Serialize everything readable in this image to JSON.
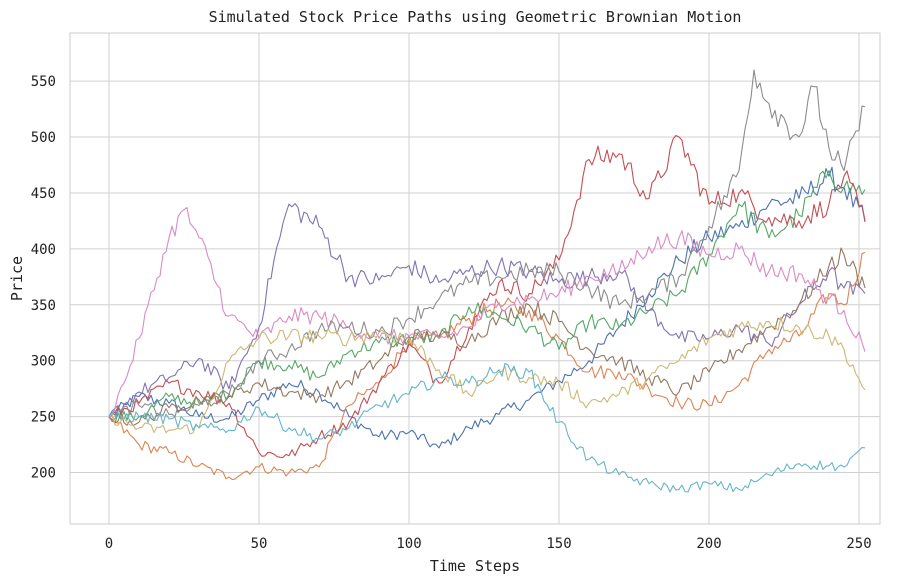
{
  "chart_data": {
    "type": "line",
    "title": "Simulated Stock Price Paths using Geometric Brownian Motion",
    "xlabel": "Time Steps",
    "ylabel": "Price",
    "xlim": [
      -13,
      257
    ],
    "ylim": [
      154,
      593
    ],
    "xticks": [
      0,
      50,
      100,
      150,
      200,
      250
    ],
    "yticks": [
      200,
      250,
      300,
      350,
      400,
      450,
      500,
      550
    ],
    "grid": true,
    "legend": "none",
    "series": [
      {
        "color": "#4c72b0",
        "points": [
          [
            0,
            250
          ],
          [
            10,
            268
          ],
          [
            20,
            262
          ],
          [
            30,
            250
          ],
          [
            40,
            248
          ],
          [
            50,
            265
          ],
          [
            60,
            280
          ],
          [
            70,
            272
          ],
          [
            80,
            250
          ],
          [
            90,
            232
          ],
          [
            100,
            236
          ],
          [
            110,
            222
          ],
          [
            120,
            240
          ],
          [
            130,
            252
          ],
          [
            140,
            265
          ],
          [
            150,
            282
          ],
          [
            160,
            300
          ],
          [
            170,
            330
          ],
          [
            180,
            360
          ],
          [
            190,
            390
          ],
          [
            200,
            410
          ],
          [
            210,
            420
          ],
          [
            220,
            440
          ],
          [
            230,
            445
          ],
          [
            240,
            465
          ],
          [
            245,
            455
          ],
          [
            252,
            424
          ]
        ]
      },
      {
        "color": "#dd8452",
        "points": [
          [
            0,
            250
          ],
          [
            10,
            225
          ],
          [
            20,
            218
          ],
          [
            30,
            206
          ],
          [
            40,
            196
          ],
          [
            50,
            205
          ],
          [
            60,
            200
          ],
          [
            70,
            205
          ],
          [
            80,
            260
          ],
          [
            90,
            280
          ],
          [
            100,
            318
          ],
          [
            110,
            320
          ],
          [
            120,
            338
          ],
          [
            130,
            350
          ],
          [
            140,
            345
          ],
          [
            150,
            320
          ],
          [
            160,
            290
          ],
          [
            170,
            290
          ],
          [
            180,
            275
          ],
          [
            190,
            262
          ],
          [
            200,
            260
          ],
          [
            210,
            278
          ],
          [
            220,
            310
          ],
          [
            230,
            322
          ],
          [
            240,
            360
          ],
          [
            245,
            350
          ],
          [
            252,
            397
          ]
        ]
      },
      {
        "color": "#55a868",
        "points": [
          [
            0,
            250
          ],
          [
            10,
            250
          ],
          [
            20,
            268
          ],
          [
            30,
            262
          ],
          [
            40,
            270
          ],
          [
            50,
            300
          ],
          [
            60,
            296
          ],
          [
            70,
            285
          ],
          [
            80,
            308
          ],
          [
            90,
            316
          ],
          [
            100,
            320
          ],
          [
            110,
            320
          ],
          [
            120,
            348
          ],
          [
            130,
            340
          ],
          [
            140,
            330
          ],
          [
            150,
            310
          ],
          [
            160,
            335
          ],
          [
            170,
            330
          ],
          [
            180,
            345
          ],
          [
            190,
            360
          ],
          [
            200,
            395
          ],
          [
            210,
            440
          ],
          [
            220,
            410
          ],
          [
            230,
            430
          ],
          [
            240,
            470
          ],
          [
            245,
            455
          ],
          [
            252,
            453
          ]
        ]
      },
      {
        "color": "#c44e52",
        "points": [
          [
            0,
            250
          ],
          [
            10,
            262
          ],
          [
            20,
            280
          ],
          [
            30,
            272
          ],
          [
            40,
            262
          ],
          [
            50,
            218
          ],
          [
            60,
            215
          ],
          [
            70,
            232
          ],
          [
            80,
            245
          ],
          [
            90,
            280
          ],
          [
            100,
            315
          ],
          [
            110,
            280
          ],
          [
            120,
            330
          ],
          [
            130,
            370
          ],
          [
            140,
            360
          ],
          [
            150,
            390
          ],
          [
            160,
            480
          ],
          [
            170,
            485
          ],
          [
            180,
            445
          ],
          [
            190,
            500
          ],
          [
            200,
            440
          ],
          [
            210,
            450
          ],
          [
            220,
            428
          ],
          [
            230,
            425
          ],
          [
            240,
            440
          ],
          [
            245,
            465
          ],
          [
            252,
            425
          ]
        ]
      },
      {
        "color": "#8172b3",
        "points": [
          [
            0,
            250
          ],
          [
            10,
            272
          ],
          [
            20,
            285
          ],
          [
            30,
            302
          ],
          [
            40,
            275
          ],
          [
            50,
            330
          ],
          [
            55,
            390
          ],
          [
            60,
            440
          ],
          [
            70,
            420
          ],
          [
            80,
            375
          ],
          [
            90,
            372
          ],
          [
            100,
            385
          ],
          [
            110,
            370
          ],
          [
            120,
            380
          ],
          [
            130,
            385
          ],
          [
            140,
            380
          ],
          [
            150,
            370
          ],
          [
            160,
            375
          ],
          [
            170,
            380
          ],
          [
            180,
            345
          ],
          [
            190,
            320
          ],
          [
            200,
            320
          ],
          [
            210,
            330
          ],
          [
            220,
            315
          ],
          [
            230,
            350
          ],
          [
            240,
            380
          ],
          [
            245,
            365
          ],
          [
            252,
            360
          ]
        ]
      },
      {
        "color": "#937860",
        "points": [
          [
            0,
            250
          ],
          [
            10,
            245
          ],
          [
            20,
            258
          ],
          [
            30,
            265
          ],
          [
            40,
            268
          ],
          [
            50,
            280
          ],
          [
            60,
            272
          ],
          [
            70,
            268
          ],
          [
            80,
            282
          ],
          [
            90,
            300
          ],
          [
            100,
            322
          ],
          [
            110,
            322
          ],
          [
            120,
            318
          ],
          [
            130,
            338
          ],
          [
            140,
            350
          ],
          [
            150,
            335
          ],
          [
            160,
            310
          ],
          [
            170,
            300
          ],
          [
            180,
            285
          ],
          [
            190,
            272
          ],
          [
            200,
            290
          ],
          [
            210,
            310
          ],
          [
            220,
            330
          ],
          [
            230,
            350
          ],
          [
            240,
            385
          ],
          [
            245,
            395
          ],
          [
            252,
            365
          ]
        ]
      },
      {
        "color": "#da8bc3",
        "points": [
          [
            0,
            250
          ],
          [
            5,
            280
          ],
          [
            10,
            320
          ],
          [
            20,
            410
          ],
          [
            25,
            435
          ],
          [
            30,
            410
          ],
          [
            40,
            340
          ],
          [
            50,
            320
          ],
          [
            60,
            340
          ],
          [
            70,
            340
          ],
          [
            80,
            330
          ],
          [
            90,
            320
          ],
          [
            100,
            322
          ],
          [
            110,
            320
          ],
          [
            120,
            330
          ],
          [
            130,
            352
          ],
          [
            140,
            355
          ],
          [
            150,
            360
          ],
          [
            160,
            375
          ],
          [
            170,
            380
          ],
          [
            180,
            402
          ],
          [
            190,
            410
          ],
          [
            200,
            395
          ],
          [
            210,
            400
          ],
          [
            220,
            380
          ],
          [
            230,
            378
          ],
          [
            240,
            355
          ],
          [
            245,
            345
          ],
          [
            252,
            308
          ]
        ]
      },
      {
        "color": "#8c8c8c",
        "points": [
          [
            0,
            250
          ],
          [
            10,
            260
          ],
          [
            20,
            252
          ],
          [
            30,
            260
          ],
          [
            40,
            270
          ],
          [
            50,
            300
          ],
          [
            60,
            310
          ],
          [
            70,
            328
          ],
          [
            80,
            330
          ],
          [
            90,
            326
          ],
          [
            100,
            338
          ],
          [
            110,
            355
          ],
          [
            120,
            370
          ],
          [
            130,
            375
          ],
          [
            140,
            380
          ],
          [
            150,
            380
          ],
          [
            160,
            365
          ],
          [
            170,
            350
          ],
          [
            180,
            360
          ],
          [
            190,
            375
          ],
          [
            200,
            420
          ],
          [
            210,
            470
          ],
          [
            215,
            560
          ],
          [
            220,
            530
          ],
          [
            230,
            500
          ],
          [
            235,
            545
          ],
          [
            240,
            490
          ],
          [
            245,
            470
          ],
          [
            252,
            527
          ]
        ]
      },
      {
        "color": "#ccb974",
        "points": [
          [
            0,
            250
          ],
          [
            10,
            240
          ],
          [
            20,
            238
          ],
          [
            30,
            240
          ],
          [
            40,
            300
          ],
          [
            50,
            320
          ],
          [
            60,
            322
          ],
          [
            70,
            322
          ],
          [
            80,
            320
          ],
          [
            90,
            325
          ],
          [
            100,
            320
          ],
          [
            110,
            292
          ],
          [
            120,
            270
          ],
          [
            130,
            290
          ],
          [
            140,
            285
          ],
          [
            150,
            280
          ],
          [
            160,
            262
          ],
          [
            170,
            270
          ],
          [
            180,
            285
          ],
          [
            190,
            300
          ],
          [
            200,
            320
          ],
          [
            210,
            330
          ],
          [
            220,
            335
          ],
          [
            230,
            330
          ],
          [
            240,
            322
          ],
          [
            245,
            310
          ],
          [
            252,
            274
          ]
        ]
      },
      {
        "color": "#64b5cd",
        "points": [
          [
            0,
            250
          ],
          [
            10,
            250
          ],
          [
            20,
            248
          ],
          [
            30,
            240
          ],
          [
            40,
            238
          ],
          [
            50,
            258
          ],
          [
            60,
            240
          ],
          [
            70,
            230
          ],
          [
            80,
            240
          ],
          [
            90,
            260
          ],
          [
            100,
            270
          ],
          [
            110,
            285
          ],
          [
            120,
            280
          ],
          [
            130,
            292
          ],
          [
            140,
            290
          ],
          [
            150,
            245
          ],
          [
            160,
            212
          ],
          [
            170,
            198
          ],
          [
            180,
            190
          ],
          [
            190,
            185
          ],
          [
            200,
            190
          ],
          [
            210,
            185
          ],
          [
            220,
            198
          ],
          [
            230,
            208
          ],
          [
            240,
            206
          ],
          [
            245,
            205
          ],
          [
            252,
            222
          ]
        ]
      }
    ]
  }
}
